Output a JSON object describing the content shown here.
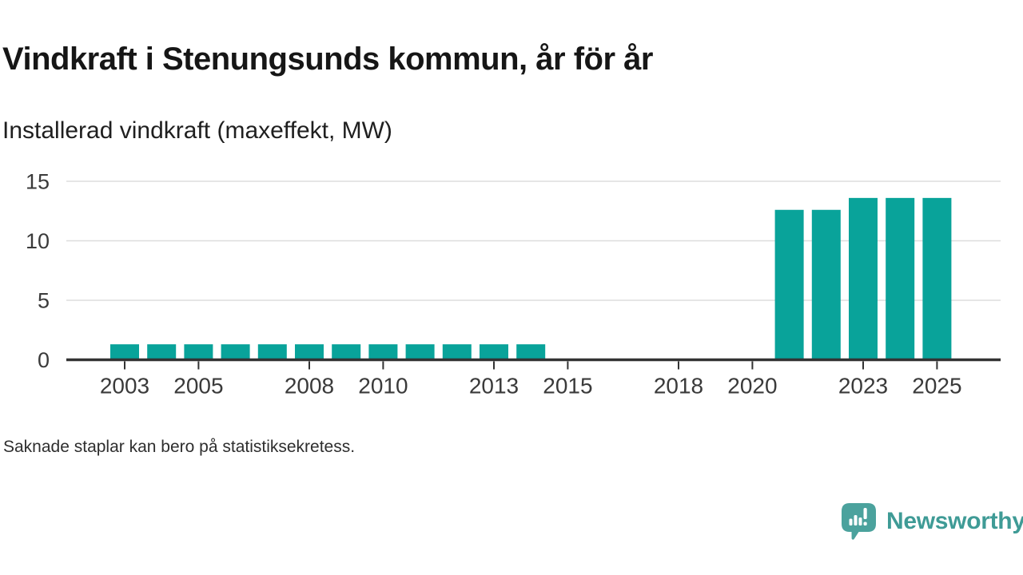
{
  "header": {
    "title": "Vindkraft i Stenungsunds kommun, år för år",
    "subtitle": "Installerad vindkraft (maxeffekt, MW)"
  },
  "footer": {
    "note": "Saknade staplar kan bero på statistiksekretess.",
    "brand": "Newsworthy"
  },
  "colors": {
    "bar": "#09a39a",
    "axis_line": "#333333",
    "tick_text": "#3a3a3a",
    "gridline": "#dddddd",
    "brand_teal": "#3f9b96",
    "logo_bubble": "#4ba29d"
  },
  "chart_data": {
    "type": "bar",
    "title": "Vindkraft i Stenungsunds kommun, år för år",
    "ylabel": "Installerad vindkraft (maxeffekt, MW)",
    "categories": [
      2003,
      2004,
      2005,
      2006,
      2007,
      2008,
      2009,
      2010,
      2011,
      2012,
      2013,
      2014,
      2015,
      2016,
      2017,
      2018,
      2019,
      2020,
      2021,
      2022,
      2023,
      2024,
      2025
    ],
    "values": [
      1.3,
      1.3,
      1.3,
      1.3,
      1.3,
      1.3,
      1.3,
      1.3,
      1.3,
      1.3,
      1.3,
      1.3,
      null,
      null,
      null,
      null,
      null,
      null,
      12.6,
      12.6,
      13.6,
      13.6,
      13.6
    ],
    "missing_years_note": "2015–2020 saknas (statistiksekretess)",
    "x_tick_labels": [
      2003,
      2005,
      2008,
      2010,
      2013,
      2015,
      2018,
      2020,
      2023,
      2025
    ],
    "y_ticks": [
      0,
      5,
      10,
      15
    ],
    "ylim": [
      0,
      15
    ],
    "grid": "horizontal",
    "legend": "none"
  }
}
